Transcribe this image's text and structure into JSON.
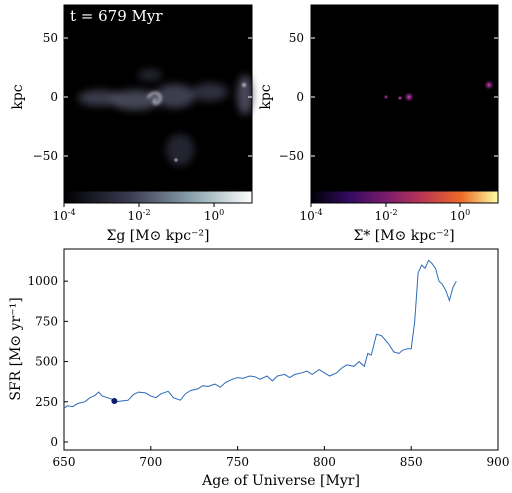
{
  "time_label": "t = 679 Myr",
  "gas_panel": {
    "ylabel": "kpc",
    "yticks": [
      "50",
      "0",
      "−50"
    ],
    "colorbar_ticks": [
      {
        "base": "10",
        "exp": "-4"
      },
      {
        "base": "10",
        "exp": "-2"
      },
      {
        "base": "10",
        "exp": "0"
      }
    ],
    "colorbar_label": "Σg [M⊙ kpc⁻²]",
    "colormap": "bone",
    "log_range": [
      -4,
      1
    ]
  },
  "star_panel": {
    "ylabel": "kpc",
    "yticks": [
      "50",
      "0",
      "−50"
    ],
    "colorbar_ticks": [
      {
        "base": "10",
        "exp": "-4"
      },
      {
        "base": "10",
        "exp": "-2"
      },
      {
        "base": "10",
        "exp": "0"
      }
    ],
    "colorbar_label": "Σ* [M⊙ kpc⁻²]",
    "colormap": "inferno",
    "log_range": [
      -4,
      1
    ]
  },
  "chart_data": {
    "type": "line",
    "xlabel": "Age of Universe [Myr]",
    "ylabel": "SFR [M⊙ yr⁻¹]",
    "xlim": [
      650,
      900
    ],
    "ylim": [
      -50,
      1200
    ],
    "xticks": [
      650,
      700,
      750,
      800,
      850,
      900
    ],
    "yticks": [
      0,
      250,
      500,
      750,
      1000
    ],
    "line_color": "#2b6cb8",
    "marker_color": "#0a1a6e",
    "marker": {
      "x": 679,
      "y": 255
    },
    "x": [
      650,
      652,
      655,
      658,
      662,
      665,
      668,
      670,
      672,
      675,
      678,
      680,
      683,
      687,
      690,
      693,
      697,
      700,
      703,
      706,
      710,
      713,
      717,
      720,
      723,
      727,
      730,
      733,
      737,
      740,
      743,
      747,
      750,
      753,
      757,
      760,
      763,
      767,
      770,
      773,
      777,
      780,
      783,
      787,
      790,
      793,
      797,
      800,
      803,
      807,
      810,
      813,
      817,
      820,
      823,
      825,
      827,
      830,
      833,
      837,
      840,
      843,
      845,
      848,
      850,
      852,
      854,
      856,
      858,
      860,
      862,
      864,
      866,
      868,
      870,
      872,
      874,
      876
    ],
    "y": [
      210,
      225,
      220,
      240,
      250,
      275,
      290,
      310,
      285,
      275,
      265,
      250,
      255,
      260,
      295,
      310,
      305,
      285,
      275,
      300,
      315,
      275,
      260,
      300,
      320,
      330,
      350,
      345,
      360,
      340,
      370,
      390,
      400,
      395,
      410,
      405,
      390,
      410,
      380,
      410,
      420,
      400,
      420,
      430,
      440,
      420,
      450,
      430,
      410,
      430,
      460,
      480,
      470,
      500,
      470,
      550,
      540,
      670,
      660,
      610,
      560,
      550,
      570,
      580,
      580,
      750,
      1050,
      1100,
      1080,
      1130,
      1110,
      1080,
      1000,
      980,
      940,
      880,
      960,
      1000
    ]
  }
}
